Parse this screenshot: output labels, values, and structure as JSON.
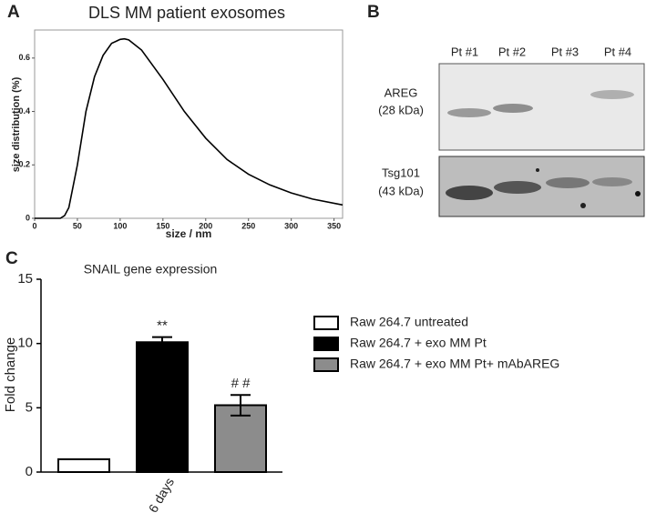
{
  "chart_data": [
    {
      "type": "line",
      "panel": "A",
      "title": "DLS MM patient exosomes",
      "xlabel": "size / nm",
      "ylabel": "size distribution (%)",
      "x": [
        0,
        30,
        35,
        40,
        50,
        60,
        70,
        80,
        90,
        100,
        105,
        110,
        125,
        150,
        175,
        200,
        225,
        250,
        275,
        300,
        325,
        360
      ],
      "values": [
        0,
        0,
        0.01,
        0.04,
        0.2,
        0.4,
        0.53,
        0.61,
        0.655,
        0.67,
        0.672,
        0.668,
        0.63,
        0.52,
        0.4,
        0.3,
        0.22,
        0.165,
        0.125,
        0.095,
        0.072,
        0.05
      ],
      "color": "#000000",
      "xlim": [
        0,
        360
      ],
      "ylim": [
        0,
        0.705
      ],
      "xticks": [
        0,
        50,
        100,
        150,
        200,
        250,
        300,
        350
      ],
      "yticks": [
        0,
        0.2,
        0.4,
        0.6
      ]
    },
    {
      "type": "bar",
      "panel": "C",
      "title": "SNAIL gene expression",
      "ylabel": "Fold change",
      "categories": [
        "6 days"
      ],
      "series": [
        {
          "name": "Raw 264.7 untreated",
          "color": "#ffffff",
          "values": [
            1
          ]
        },
        {
          "name": "Raw 264.7 + exo MM Pt",
          "color": "#000000",
          "values": [
            10.1
          ],
          "errors": [
            0.4
          ],
          "significance": "**"
        },
        {
          "name": "Raw 264.7 + exo MM Pt+ mAbAREG",
          "color": "#8c8c8c",
          "values": [
            5.2
          ],
          "errors": [
            0.8
          ],
          "significance": "# #"
        }
      ],
      "ylim": [
        0,
        15
      ],
      "yticks": [
        0,
        5,
        10,
        15
      ]
    }
  ],
  "blot": {
    "panel": "B",
    "lanes": [
      "Pt #1",
      "Pt #2",
      "Pt #3",
      "Pt #4"
    ],
    "rows": [
      {
        "name": "AREG",
        "size": "(28 kDa)"
      },
      {
        "name": "Tsg101",
        "size": "(43 kDa)"
      }
    ]
  }
}
